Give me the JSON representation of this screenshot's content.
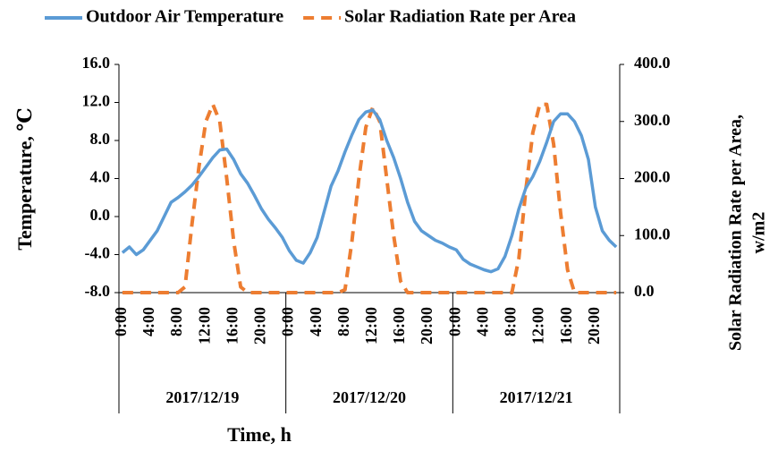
{
  "chart_data": {
    "type": "line",
    "series": [
      {
        "name": "Outdoor Air Temperature",
        "color": "#5b9bd5",
        "style": "solid",
        "values": [
          -3.8,
          -3.2,
          -4,
          -3.5,
          -2.5,
          -1.5,
          0,
          1.5,
          2,
          2.6,
          3.3,
          4.2,
          5.2,
          6.2,
          7,
          7.1,
          6,
          4.5,
          3.5,
          2.2,
          0.8,
          -0.3,
          -1.2,
          -2.2,
          -3.6,
          -4.6,
          -4.9,
          -3.8,
          -2.2,
          0.5,
          3.2,
          4.8,
          6.8,
          8.6,
          10.2,
          11,
          11.2,
          10.2,
          8,
          6.2,
          4,
          1.5,
          -0.5,
          -1.5,
          -2,
          -2.5,
          -2.8,
          -3.2,
          -3.5,
          -4.5,
          -5,
          -5.3,
          -5.6,
          -5.8,
          -5.5,
          -4.2,
          -2,
          0.8,
          3,
          4.2,
          5.8,
          7.8,
          10,
          10.8,
          10.8,
          10,
          8.5,
          6,
          1,
          -1.5,
          -2.5,
          -3.2
        ]
      },
      {
        "name": "Solar Radiation Rate per Area",
        "color": "#ed7d31",
        "style": "dashed",
        "axis": "y2",
        "values": [
          0,
          0,
          0,
          0,
          0,
          0,
          0,
          0,
          0,
          10,
          120,
          220,
          300,
          330,
          300,
          200,
          90,
          10,
          0,
          0,
          0,
          0,
          0,
          0,
          0,
          0,
          0,
          0,
          0,
          0,
          0,
          0,
          5,
          90,
          200,
          290,
          325,
          300,
          200,
          100,
          20,
          0,
          0,
          0,
          0,
          0,
          0,
          0,
          0,
          0,
          0,
          0,
          0,
          0,
          0,
          0,
          0,
          60,
          180,
          280,
          330,
          330,
          260,
          140,
          40,
          0,
          0,
          0,
          0,
          0,
          0,
          0
        ]
      }
    ],
    "categories": [
      "0:00",
      null,
      null,
      null,
      "4:00",
      null,
      null,
      null,
      "8:00",
      null,
      null,
      null,
      "12:00",
      null,
      null,
      null,
      "16:00",
      null,
      null,
      null,
      "20:00",
      null,
      null,
      null,
      "0:00",
      null,
      null,
      null,
      "4:00",
      null,
      null,
      null,
      "8:00",
      null,
      null,
      null,
      "12:00",
      null,
      null,
      null,
      "16:00",
      null,
      null,
      null,
      "20:00",
      null,
      null,
      null,
      "0:00",
      null,
      null,
      null,
      "4:00",
      null,
      null,
      null,
      "8:00",
      null,
      null,
      null,
      "12:00",
      null,
      null,
      null,
      "16:00",
      null,
      null,
      null,
      "20:00",
      null,
      null,
      null
    ],
    "category_groups": [
      "2017/12/19",
      "2017/12/20",
      "2017/12/21"
    ],
    "x_label": "Time, h",
    "y_label": "Temperature, ℃",
    "y2_label": [
      "Solar Radiation Rate per Area,",
      "w/m2"
    ],
    "ylim": [
      -8,
      16
    ],
    "yticks": [
      {
        "value": -8,
        "label": "-8.0"
      },
      {
        "value": -4,
        "label": "-4.0"
      },
      {
        "value": 0,
        "label": "0.0"
      },
      {
        "value": 4,
        "label": "4.0"
      },
      {
        "value": 8,
        "label": "8.0"
      },
      {
        "value": 12,
        "label": "12.0"
      },
      {
        "value": 16,
        "label": "16.0"
      }
    ],
    "y2lim": [
      0,
      400
    ],
    "y2ticks": [
      {
        "value": 0,
        "label": "0.0"
      },
      {
        "value": 100,
        "label": "100.0"
      },
      {
        "value": 200,
        "label": "200.0"
      },
      {
        "value": 300,
        "label": "300.0"
      },
      {
        "value": 400,
        "label": "400.0"
      }
    ],
    "legend": "top"
  }
}
